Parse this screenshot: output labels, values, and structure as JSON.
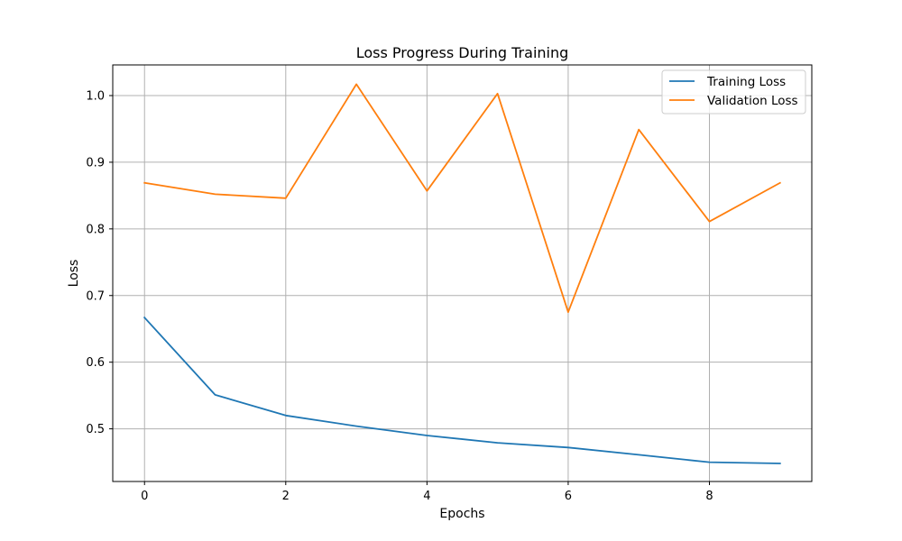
{
  "chart_data": {
    "type": "line",
    "title": "Loss Progress During Training",
    "xlabel": "Epochs",
    "ylabel": "Loss",
    "x": [
      0,
      1,
      2,
      3,
      4,
      5,
      6,
      7,
      8,
      9
    ],
    "xlim": [
      -0.45,
      9.45
    ],
    "ylim": [
      0.421,
      1.046
    ],
    "xticks": [
      0,
      2,
      4,
      6,
      8
    ],
    "xtick_labels": [
      "0",
      "2",
      "4",
      "6",
      "8"
    ],
    "yticks": [
      0.5,
      0.6,
      0.7,
      0.8,
      0.9,
      1.0
    ],
    "ytick_labels": [
      "0.5",
      "0.6",
      "0.7",
      "0.8",
      "0.9",
      "1.0"
    ],
    "grid": true,
    "legend_position": "top-right",
    "series": [
      {
        "name": "Training Loss",
        "color": "#1f77b4",
        "values": [
          0.667,
          0.551,
          0.52,
          0.504,
          0.49,
          0.479,
          0.472,
          0.461,
          0.45,
          0.448
        ]
      },
      {
        "name": "Validation Loss",
        "color": "#ff7f0e",
        "values": [
          0.869,
          0.852,
          0.846,
          1.017,
          0.857,
          1.003,
          0.675,
          0.949,
          0.811,
          0.869
        ]
      }
    ]
  }
}
